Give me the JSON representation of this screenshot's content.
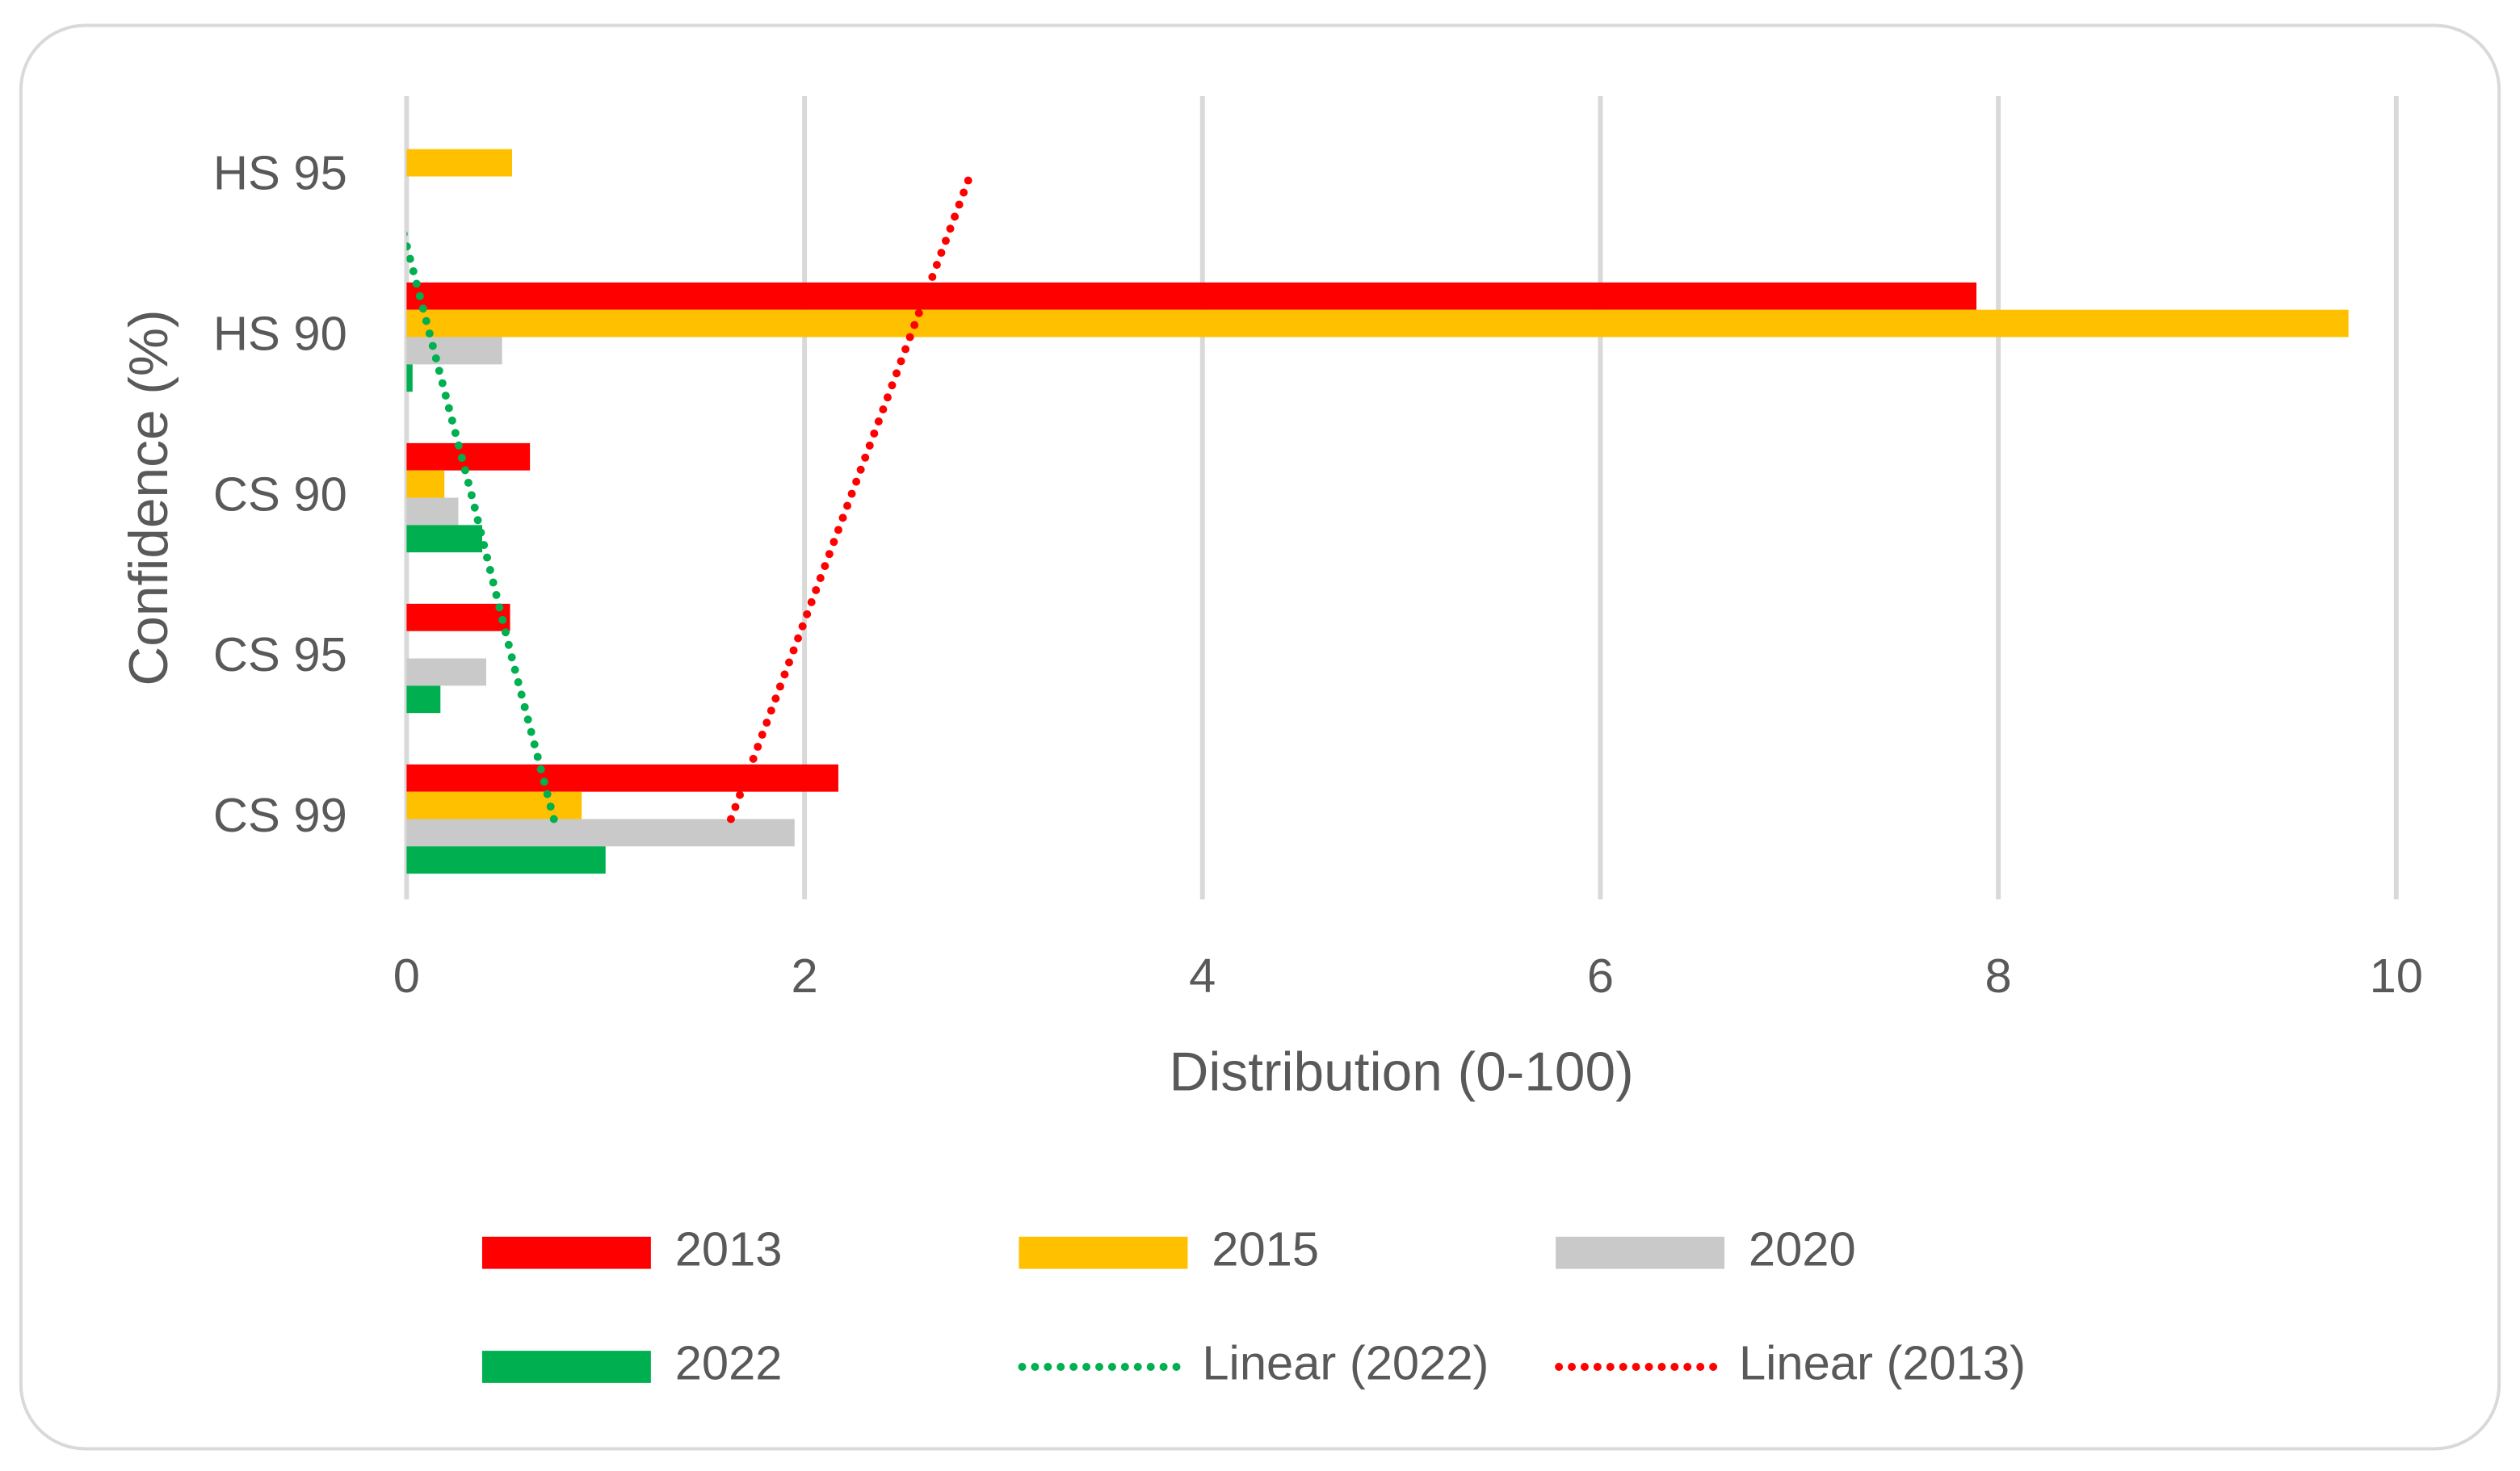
{
  "chart_data": {
    "type": "hbar",
    "x_label": "Distribution (0-100)",
    "y_label": "Confidence (%)",
    "categories": [
      "CS 99",
      "CS 95",
      "CS 90",
      "HS 90",
      "HS 95"
    ],
    "series": [
      {
        "name": "2013",
        "color": "#ff0000",
        "values": [
          2.17,
          0.52,
          0.62,
          7.89,
          null
        ]
      },
      {
        "name": "2015",
        "color": "#ffc000",
        "values": [
          0.88,
          null,
          0.19,
          9.76,
          0.53
        ]
      },
      {
        "name": "2020",
        "color": "#c9c9c9",
        "values": [
          1.95,
          0.4,
          0.26,
          0.48,
          null
        ]
      },
      {
        "name": "2022",
        "color": "#00b050",
        "values": [
          1.0,
          0.17,
          0.38,
          0.03,
          null
        ]
      }
    ],
    "trendlines": [
      {
        "name": "Linear (2022)",
        "color": "#00b050",
        "values": [
          0.74,
          0.53,
          0.33,
          0.12,
          -0.09
        ]
      },
      {
        "name": "Linear (2013)",
        "color": "#ff0000",
        "values": [
          1.63,
          1.93,
          2.23,
          2.53,
          2.83
        ]
      }
    ],
    "xlim": [
      0,
      10
    ],
    "xticks": [
      0,
      2,
      4,
      6,
      8,
      10
    ],
    "grid": true,
    "legend": "bottom"
  }
}
